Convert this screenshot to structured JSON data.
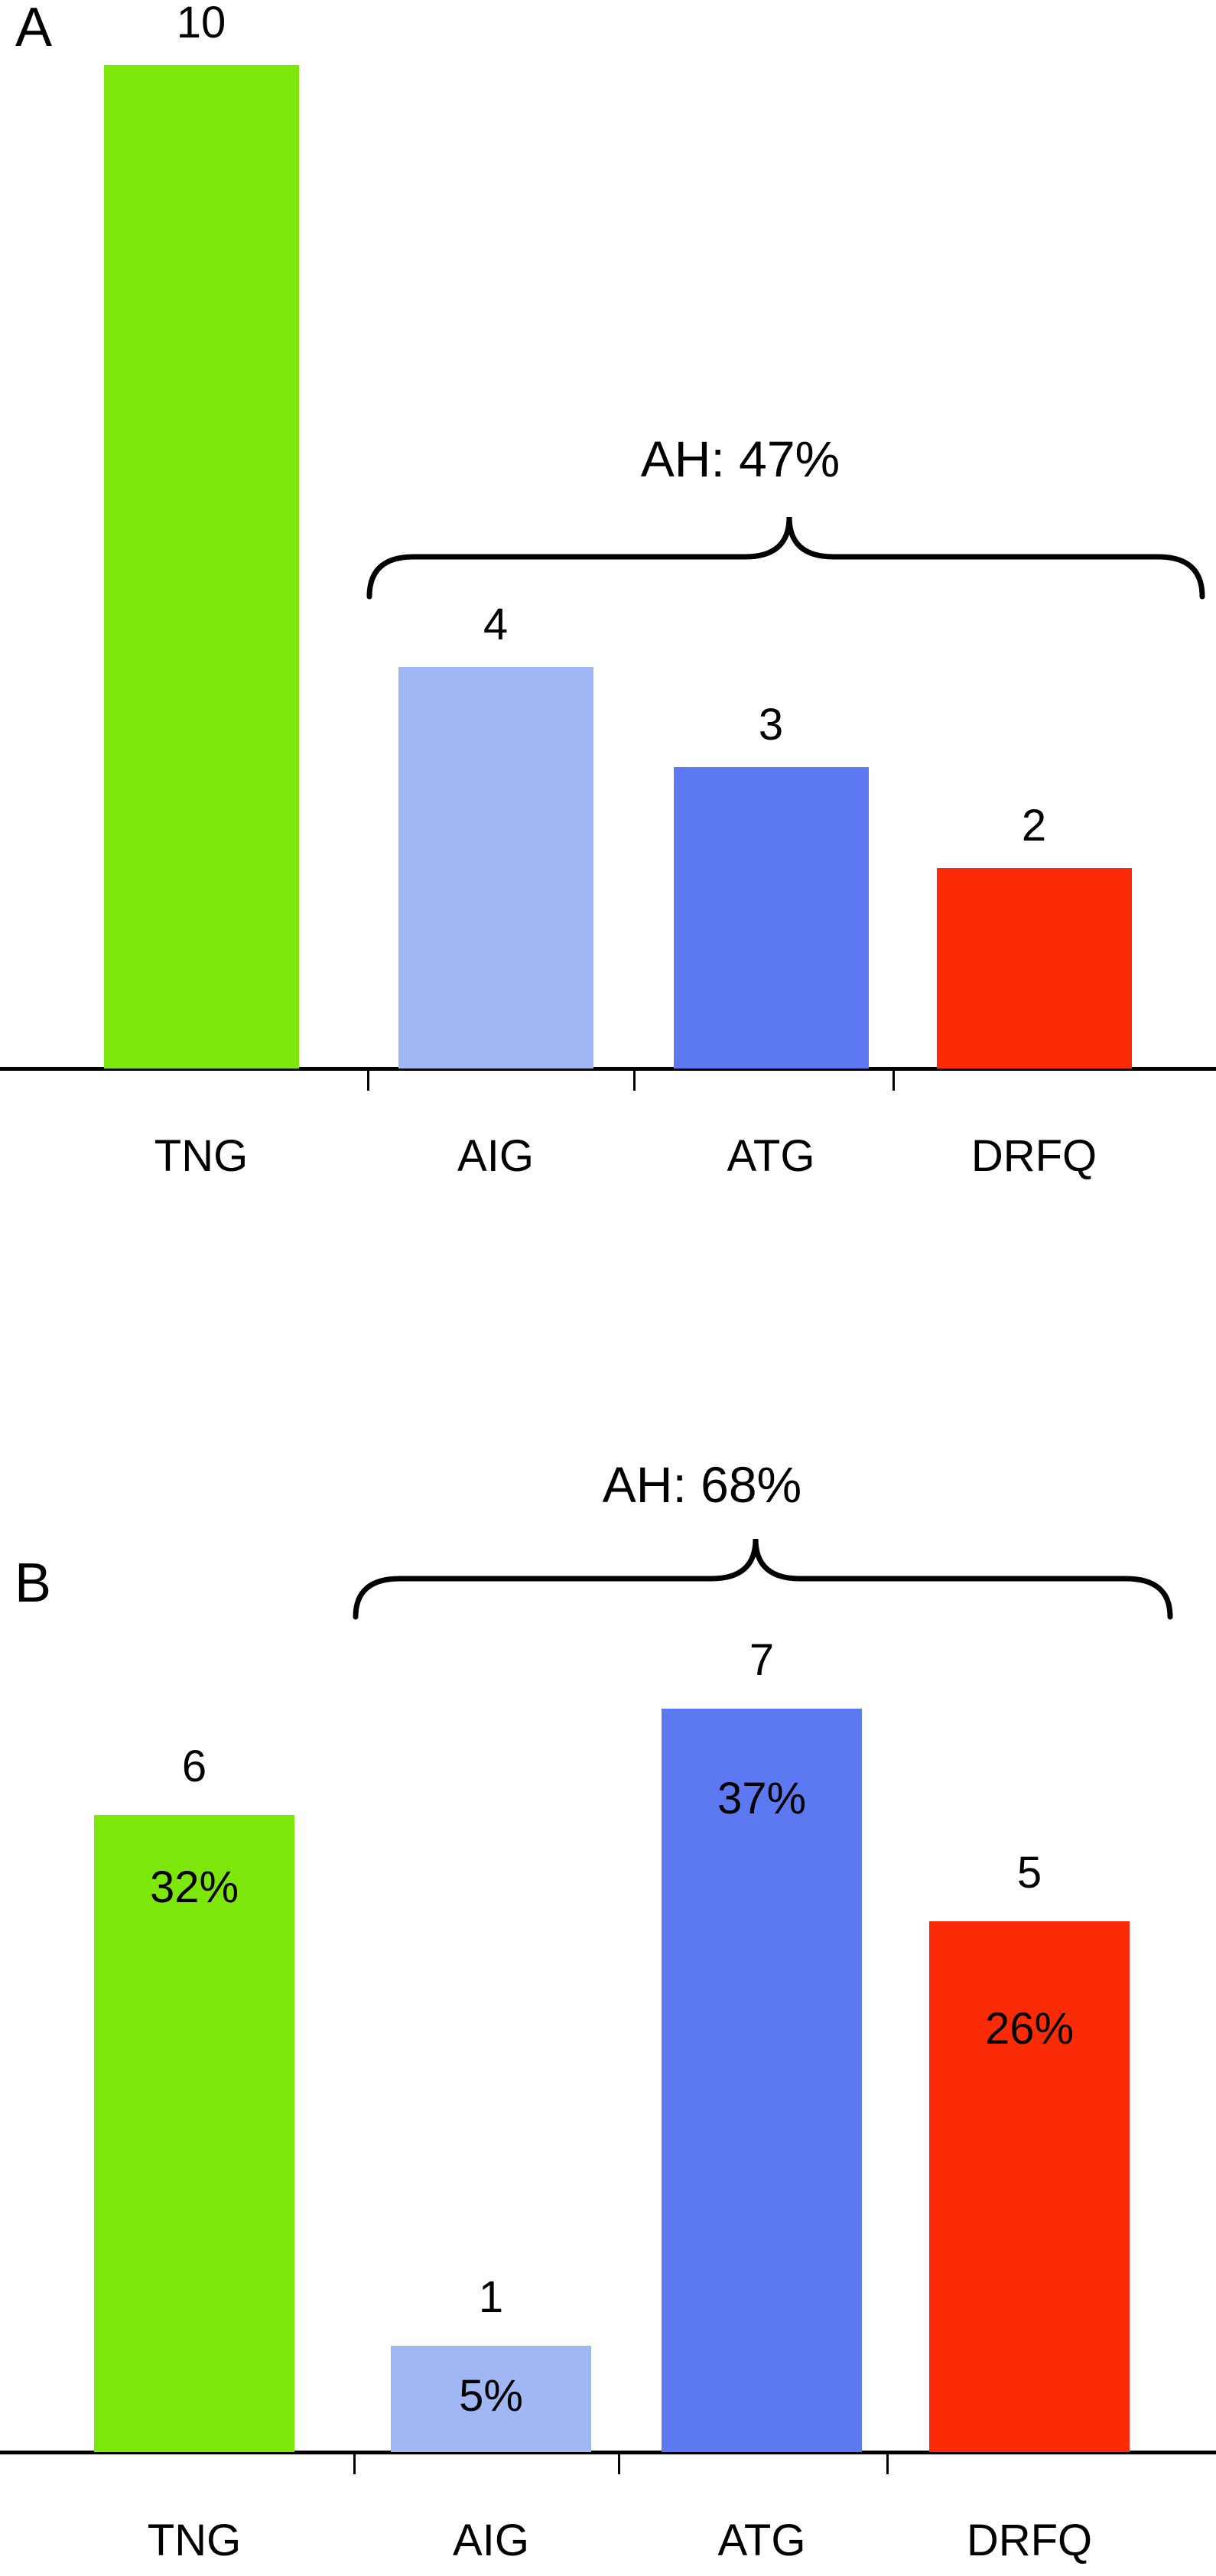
{
  "figure": {
    "background_color": "#ffffff",
    "axis_color": "#000000",
    "text_color": "#000000"
  },
  "chart_data": [
    {
      "type": "bar",
      "panel_label": "A",
      "title": "",
      "xlabel": "",
      "ylabel": "",
      "categories": [
        "TNG",
        "AIG",
        "ATG",
        "DRFQ"
      ],
      "values": [
        10,
        4,
        3,
        2
      ],
      "value_labels": [
        "10",
        "4",
        "3",
        "2"
      ],
      "percent_labels": [
        null,
        null,
        null,
        null
      ],
      "bar_colors": [
        "#7DE70B",
        "#A0B7F3",
        "#5C79F2",
        "#FA2B06"
      ],
      "ylim": [
        0,
        10.4
      ],
      "grid": false,
      "legend": null,
      "annotation": {
        "text": "AH: 47%",
        "spans_categories": [
          "AIG",
          "ATG",
          "DRFQ"
        ]
      }
    },
    {
      "type": "bar",
      "panel_label": "B",
      "title": "",
      "xlabel": "",
      "ylabel": "",
      "categories": [
        "TNG",
        "AIG",
        "ATG",
        "DRFQ"
      ],
      "values": [
        6,
        1,
        7,
        5
      ],
      "value_labels": [
        "6",
        "1",
        "7",
        "5"
      ],
      "percent_labels": [
        "32%",
        "5%",
        "37%",
        "26%"
      ],
      "bar_colors": [
        "#7DE70B",
        "#A0B7F3",
        "#5C79F2",
        "#FA2B06"
      ],
      "ylim": [
        0,
        8.6
      ],
      "grid": false,
      "legend": null,
      "annotation": {
        "text": "AH: 68%",
        "spans_categories": [
          "AIG",
          "ATG",
          "DRFQ"
        ]
      }
    }
  ]
}
